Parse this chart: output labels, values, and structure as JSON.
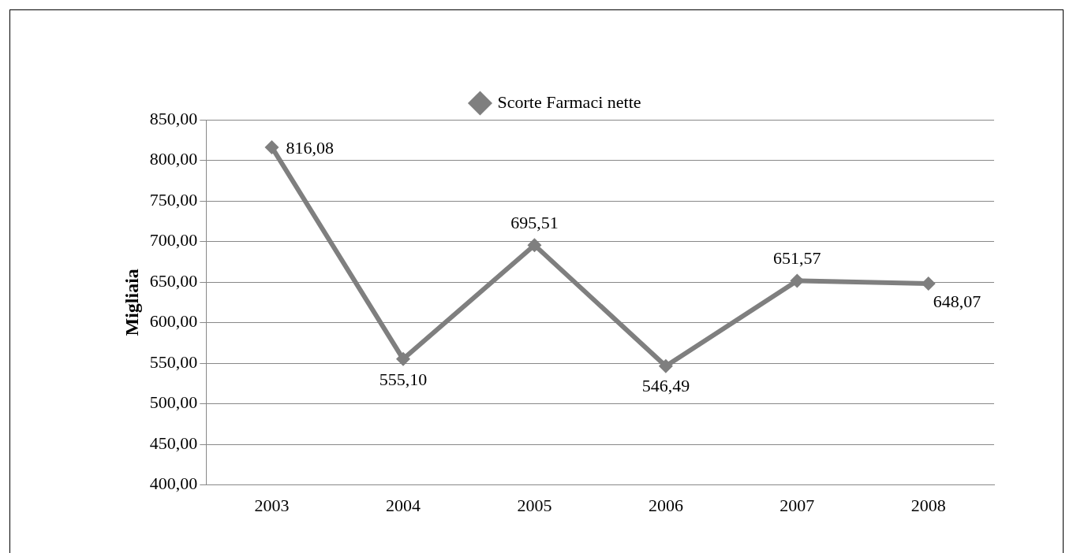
{
  "chart_data": {
    "type": "line",
    "ylabel": "Migliaia",
    "categories": [
      "2003",
      "2004",
      "2005",
      "2006",
      "2007",
      "2008"
    ],
    "series": [
      {
        "name": "Scorte Farmaci nette",
        "color": "#7f7f7f",
        "values": [
          816.08,
          555.1,
          695.51,
          546.49,
          651.57,
          648.07
        ],
        "value_labels": [
          "816,08",
          "555,10",
          "695,51",
          "546,49",
          "651,57",
          "648,07"
        ]
      }
    ],
    "ylim": [
      400,
      850
    ],
    "yticks": [
      {
        "value": 400,
        "label": "400,00"
      },
      {
        "value": 450,
        "label": "450,00"
      },
      {
        "value": 500,
        "label": "500,00"
      },
      {
        "value": 550,
        "label": "550,00"
      },
      {
        "value": 600,
        "label": "600,00"
      },
      {
        "value": 650,
        "label": "650,00"
      },
      {
        "value": 700,
        "label": "700,00"
      },
      {
        "value": 750,
        "label": "750,00"
      },
      {
        "value": 800,
        "label": "800,00"
      },
      {
        "value": 850,
        "label": "850,00"
      }
    ],
    "grid": "y",
    "legend": "top",
    "marker": "diamond",
    "line_style": "solid"
  }
}
